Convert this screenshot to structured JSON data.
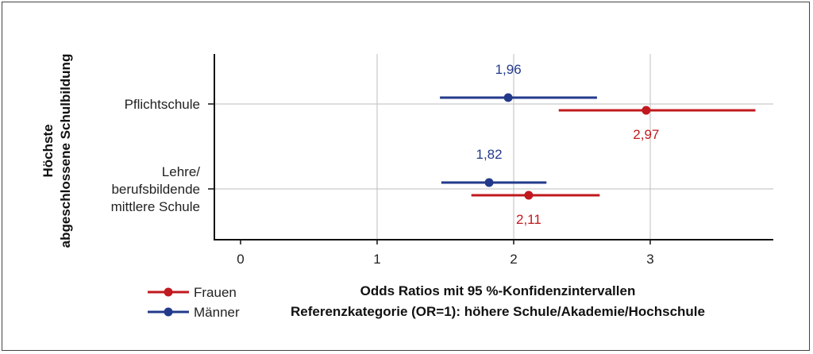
{
  "chart_data": {
    "type": "forest",
    "xlabel": "Odds Ratios mit 95 %-Konfidenzintervallen",
    "subtitle": "Referenzkategorie (OR=1): höhere Schule/Akademie/Hochschule",
    "ylabel_lines": [
      "Höchste",
      "abgeschlossene Schulbildung"
    ],
    "xlim": [
      -0.2,
      3.9
    ],
    "xticks": [
      0,
      1,
      2,
      3
    ],
    "xtick_labels": [
      "0",
      "1",
      "2",
      "3"
    ],
    "grid": true,
    "legend_position": "bottom-left",
    "categories": [
      {
        "lines": [
          "Pflichtschule"
        ]
      },
      {
        "lines": [
          "Lehre/",
          "berufsbildende",
          "mittlere Schule"
        ]
      }
    ],
    "series": [
      {
        "name": "Frauen",
        "color": "#c0191e",
        "points": [
          {
            "category": 0,
            "or": 2.97,
            "lower": 2.33,
            "upper": 3.77,
            "label": "2,97"
          },
          {
            "category": 1,
            "or": 2.11,
            "lower": 1.69,
            "upper": 2.63,
            "label": "2,11"
          }
        ]
      },
      {
        "name": "Männer",
        "color": "#233a8b",
        "points": [
          {
            "category": 0,
            "or": 1.96,
            "lower": 1.46,
            "upper": 2.61,
            "label": "1,96"
          },
          {
            "category": 1,
            "or": 1.82,
            "lower": 1.47,
            "upper": 2.24,
            "label": "1,82"
          }
        ]
      }
    ]
  }
}
